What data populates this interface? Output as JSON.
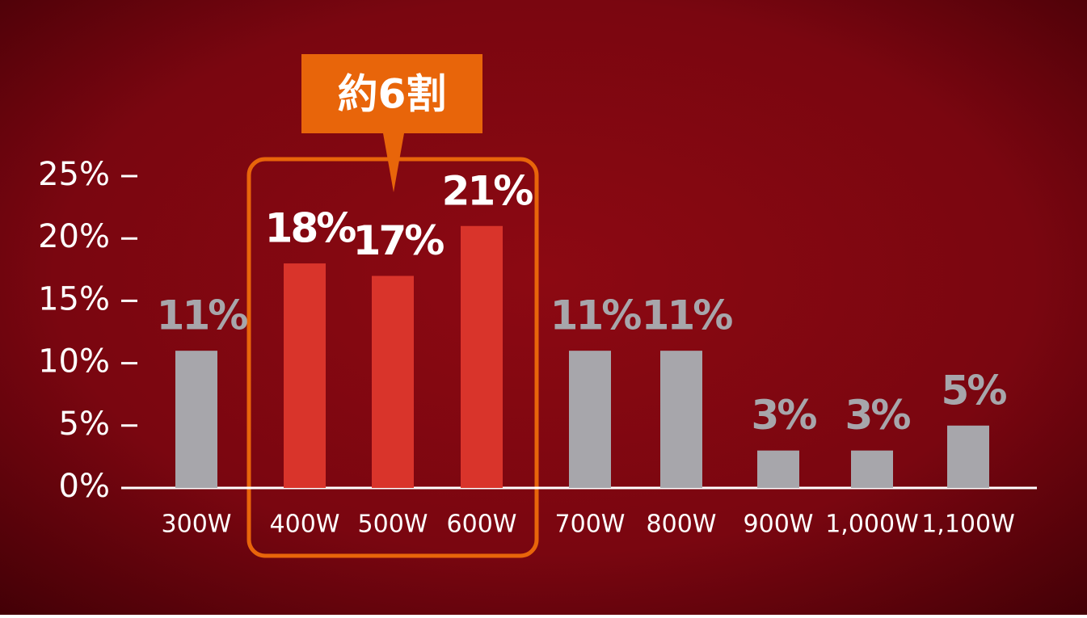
{
  "chart_data": {
    "type": "bar",
    "annotation": "約6割",
    "categories": [
      "300W",
      "400W",
      "500W",
      "600W",
      "700W",
      "800W",
      "900W",
      "1,000W",
      "1,100W"
    ],
    "values": [
      11,
      18,
      17,
      21,
      11,
      11,
      3,
      3,
      5
    ],
    "value_labels": [
      "11%",
      "18%",
      "17%",
      "21%",
      "11%",
      "11%",
      "3%",
      "3%",
      "5%"
    ],
    "colors": [
      "#a7a6ab",
      "#d9342b",
      "#d9342b",
      "#d9342b",
      "#a7a6ab",
      "#a7a6ab",
      "#a7a6ab",
      "#a7a6ab",
      "#a7a6ab"
    ],
    "ylim": [
      0,
      25
    ],
    "yticks": [
      {
        "value": 0,
        "label": "0%"
      },
      {
        "value": 5,
        "label": "5%"
      },
      {
        "value": 10,
        "label": "10%"
      },
      {
        "value": 15,
        "label": "15%"
      },
      {
        "value": 20,
        "label": "20%"
      },
      {
        "value": 25,
        "label": "25%"
      }
    ]
  }
}
